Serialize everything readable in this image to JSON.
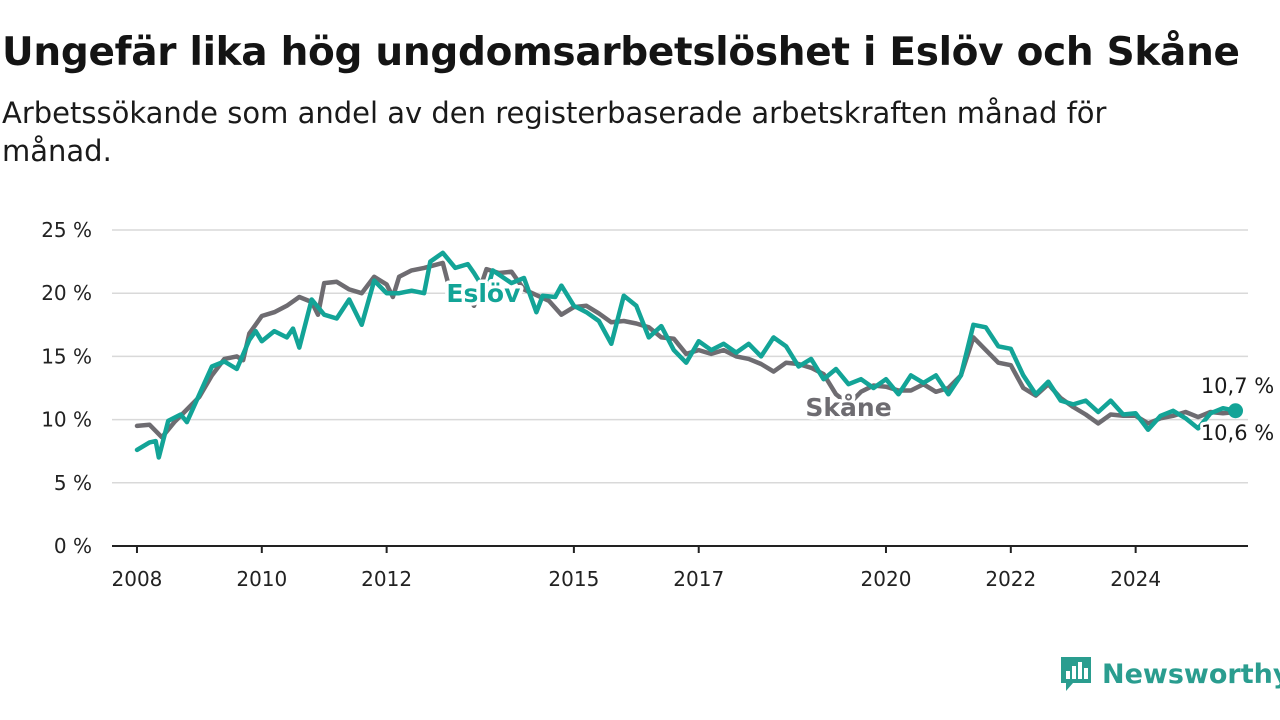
{
  "title": "Ungefär lika hög ungdomsarbetslöshet i Eslöv och Skåne",
  "subtitle": "Arbetssökande som andel av den registerbaserade arbetskraften månad för månad.",
  "brand": {
    "name": "Newsworthy",
    "icon": "newsworthy-logo-icon"
  },
  "colors": {
    "eslov": "#13a497",
    "skane": "#6e6c71",
    "grid": "#d9d9d9",
    "axis": "#222222"
  },
  "chart_data": {
    "type": "line",
    "ylim": [
      0,
      25
    ],
    "xlim": [
      2007.6,
      2025.8
    ],
    "y_ticks": [
      {
        "value": 0,
        "label": "0 %"
      },
      {
        "value": 5,
        "label": "5 %"
      },
      {
        "value": 10,
        "label": "10 %"
      },
      {
        "value": 15,
        "label": "15 %"
      },
      {
        "value": 20,
        "label": "20 %"
      },
      {
        "value": 25,
        "label": "25 %"
      }
    ],
    "x_ticks": [
      {
        "value": 2008,
        "label": "2008"
      },
      {
        "value": 2010,
        "label": "2010"
      },
      {
        "value": 2012,
        "label": "2012"
      },
      {
        "value": 2015,
        "label": "2015"
      },
      {
        "value": 2017,
        "label": "2017"
      },
      {
        "value": 2020,
        "label": "2020"
      },
      {
        "value": 2022,
        "label": "2022"
      },
      {
        "value": 2024,
        "label": "2024"
      }
    ],
    "grid": true,
    "series": [
      {
        "name": "Skåne",
        "color": "#6e6c71",
        "end_label": "10,6 %",
        "points": [
          [
            2008.0,
            9.5
          ],
          [
            2008.2,
            9.6
          ],
          [
            2008.4,
            8.6
          ],
          [
            2008.6,
            9.8
          ],
          [
            2008.8,
            10.8
          ],
          [
            2009.0,
            11.8
          ],
          [
            2009.2,
            13.5
          ],
          [
            2009.4,
            14.8
          ],
          [
            2009.6,
            15.0
          ],
          [
            2009.7,
            14.7
          ],
          [
            2009.8,
            16.8
          ],
          [
            2010.0,
            18.2
          ],
          [
            2010.2,
            18.5
          ],
          [
            2010.4,
            19.0
          ],
          [
            2010.6,
            19.7
          ],
          [
            2010.8,
            19.3
          ],
          [
            2010.9,
            18.3
          ],
          [
            2011.0,
            20.8
          ],
          [
            2011.2,
            20.9
          ],
          [
            2011.4,
            20.3
          ],
          [
            2011.6,
            20.0
          ],
          [
            2011.8,
            21.3
          ],
          [
            2012.0,
            20.7
          ],
          [
            2012.1,
            19.7
          ],
          [
            2012.2,
            21.3
          ],
          [
            2012.4,
            21.8
          ],
          [
            2012.6,
            22.0
          ],
          [
            2012.9,
            22.4
          ],
          [
            2013.0,
            20.5
          ],
          [
            2013.2,
            20.6
          ],
          [
            2013.4,
            19.0
          ],
          [
            2013.6,
            21.9
          ],
          [
            2013.8,
            21.6
          ],
          [
            2014.0,
            21.7
          ],
          [
            2014.2,
            20.3
          ],
          [
            2014.6,
            19.4
          ],
          [
            2014.8,
            18.3
          ],
          [
            2015.0,
            18.9
          ],
          [
            2015.2,
            19.0
          ],
          [
            2015.4,
            18.4
          ],
          [
            2015.6,
            17.7
          ],
          [
            2015.8,
            17.8
          ],
          [
            2016.0,
            17.6
          ],
          [
            2016.2,
            17.3
          ],
          [
            2016.4,
            16.5
          ],
          [
            2016.6,
            16.4
          ],
          [
            2016.8,
            15.2
          ],
          [
            2017.0,
            15.5
          ],
          [
            2017.2,
            15.2
          ],
          [
            2017.4,
            15.5
          ],
          [
            2017.6,
            15.0
          ],
          [
            2017.8,
            14.8
          ],
          [
            2018.0,
            14.4
          ],
          [
            2018.2,
            13.8
          ],
          [
            2018.4,
            14.5
          ],
          [
            2018.6,
            14.4
          ],
          [
            2018.8,
            14.1
          ],
          [
            2019.0,
            13.6
          ],
          [
            2019.2,
            12.0
          ],
          [
            2019.4,
            11.2
          ],
          [
            2019.6,
            12.2
          ],
          [
            2019.8,
            12.7
          ],
          [
            2020.0,
            12.6
          ],
          [
            2020.2,
            12.3
          ],
          [
            2020.4,
            12.3
          ],
          [
            2020.6,
            12.8
          ],
          [
            2020.8,
            12.2
          ],
          [
            2021.0,
            12.5
          ],
          [
            2021.2,
            13.5
          ],
          [
            2021.4,
            16.5
          ],
          [
            2021.6,
            15.5
          ],
          [
            2021.8,
            14.5
          ],
          [
            2022.0,
            14.3
          ],
          [
            2022.2,
            12.5
          ],
          [
            2022.4,
            11.9
          ],
          [
            2022.6,
            12.8
          ],
          [
            2022.8,
            11.7
          ],
          [
            2023.0,
            11.0
          ],
          [
            2023.2,
            10.4
          ],
          [
            2023.4,
            9.7
          ],
          [
            2023.6,
            10.4
          ],
          [
            2023.8,
            10.3
          ],
          [
            2024.0,
            10.3
          ],
          [
            2024.2,
            9.7
          ],
          [
            2024.4,
            10.1
          ],
          [
            2024.6,
            10.3
          ],
          [
            2024.8,
            10.6
          ],
          [
            2025.0,
            10.2
          ],
          [
            2025.2,
            10.6
          ],
          [
            2025.4,
            10.5
          ],
          [
            2025.6,
            10.6
          ]
        ]
      },
      {
        "name": "Eslöv",
        "color": "#13a497",
        "end_label": "10,7 %",
        "points": [
          [
            2008.0,
            7.6
          ],
          [
            2008.2,
            8.2
          ],
          [
            2008.3,
            8.3
          ],
          [
            2008.35,
            7.0
          ],
          [
            2008.5,
            9.9
          ],
          [
            2008.7,
            10.4
          ],
          [
            2008.8,
            9.8
          ],
          [
            2009.0,
            12.0
          ],
          [
            2009.2,
            14.2
          ],
          [
            2009.4,
            14.6
          ],
          [
            2009.6,
            14.0
          ],
          [
            2009.8,
            16.3
          ],
          [
            2009.9,
            17.0
          ],
          [
            2010.0,
            16.2
          ],
          [
            2010.2,
            17.0
          ],
          [
            2010.4,
            16.5
          ],
          [
            2010.5,
            17.2
          ],
          [
            2010.6,
            15.7
          ],
          [
            2010.8,
            19.5
          ],
          [
            2011.0,
            18.3
          ],
          [
            2011.2,
            18.0
          ],
          [
            2011.4,
            19.5
          ],
          [
            2011.6,
            17.5
          ],
          [
            2011.8,
            21.0
          ],
          [
            2012.0,
            20.0
          ],
          [
            2012.2,
            20.0
          ],
          [
            2012.4,
            20.2
          ],
          [
            2012.6,
            20.0
          ],
          [
            2012.7,
            22.5
          ],
          [
            2012.9,
            23.2
          ],
          [
            2013.1,
            22.0
          ],
          [
            2013.3,
            22.3
          ],
          [
            2013.4,
            21.6
          ],
          [
            2013.6,
            20.0
          ],
          [
            2013.7,
            21.8
          ],
          [
            2014.0,
            20.8
          ],
          [
            2014.2,
            21.2
          ],
          [
            2014.4,
            18.5
          ],
          [
            2014.5,
            19.8
          ],
          [
            2014.7,
            19.7
          ],
          [
            2014.8,
            20.6
          ],
          [
            2015.0,
            19.0
          ],
          [
            2015.2,
            18.5
          ],
          [
            2015.4,
            17.8
          ],
          [
            2015.6,
            16.0
          ],
          [
            2015.8,
            19.8
          ],
          [
            2016.0,
            19.0
          ],
          [
            2016.2,
            16.5
          ],
          [
            2016.4,
            17.4
          ],
          [
            2016.6,
            15.5
          ],
          [
            2016.8,
            14.5
          ],
          [
            2017.0,
            16.2
          ],
          [
            2017.2,
            15.5
          ],
          [
            2017.4,
            16.0
          ],
          [
            2017.6,
            15.3
          ],
          [
            2017.8,
            16.0
          ],
          [
            2018.0,
            15.0
          ],
          [
            2018.2,
            16.5
          ],
          [
            2018.4,
            15.8
          ],
          [
            2018.6,
            14.2
          ],
          [
            2018.8,
            14.8
          ],
          [
            2019.0,
            13.2
          ],
          [
            2019.2,
            14.0
          ],
          [
            2019.4,
            12.8
          ],
          [
            2019.6,
            13.2
          ],
          [
            2019.8,
            12.5
          ],
          [
            2020.0,
            13.2
          ],
          [
            2020.2,
            12.0
          ],
          [
            2020.4,
            13.5
          ],
          [
            2020.6,
            12.9
          ],
          [
            2020.8,
            13.5
          ],
          [
            2021.0,
            12.0
          ],
          [
            2021.2,
            13.5
          ],
          [
            2021.4,
            17.5
          ],
          [
            2021.6,
            17.3
          ],
          [
            2021.8,
            15.8
          ],
          [
            2022.0,
            15.6
          ],
          [
            2022.2,
            13.5
          ],
          [
            2022.4,
            12.0
          ],
          [
            2022.6,
            13.0
          ],
          [
            2022.8,
            11.5
          ],
          [
            2023.0,
            11.2
          ],
          [
            2023.2,
            11.5
          ],
          [
            2023.4,
            10.6
          ],
          [
            2023.6,
            11.5
          ],
          [
            2023.8,
            10.4
          ],
          [
            2024.0,
            10.5
          ],
          [
            2024.2,
            9.2
          ],
          [
            2024.4,
            10.3
          ],
          [
            2024.6,
            10.7
          ],
          [
            2024.8,
            10.1
          ],
          [
            2025.0,
            9.3
          ],
          [
            2025.2,
            10.5
          ],
          [
            2025.4,
            10.9
          ],
          [
            2025.6,
            10.7
          ]
        ]
      }
    ],
    "annotations": [
      {
        "text": "Eslöv",
        "series": "Eslöv",
        "x": 2013.55,
        "y": 20.0
      },
      {
        "text": "Skåne",
        "series": "Skåne",
        "x": 2019.4,
        "y": 11.0
      }
    ]
  }
}
